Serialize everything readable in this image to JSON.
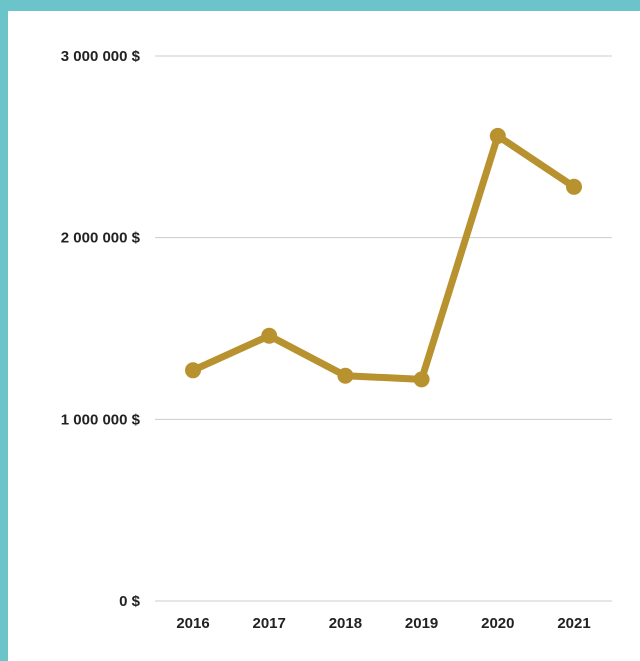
{
  "colors": {
    "frame": "#6cc4cb",
    "line": "#b8922e",
    "grid": "#cccccc",
    "text": "#222222"
  },
  "chart_data": {
    "type": "line",
    "title": "",
    "xlabel": "",
    "ylabel": "",
    "categories": [
      "2016",
      "2017",
      "2018",
      "2019",
      "2020",
      "2021"
    ],
    "series": [
      {
        "values": [
          1270000,
          1460000,
          1240000,
          1220000,
          2560000,
          2280000
        ]
      }
    ],
    "ylim": [
      0,
      3000000
    ],
    "yticks": [
      0,
      1000000,
      2000000,
      3000000
    ],
    "ytick_labels": [
      "0 $",
      "1 000 000 $",
      "2 000 000 $",
      "3 000 000 $"
    ],
    "grid": true,
    "legend": "none"
  }
}
